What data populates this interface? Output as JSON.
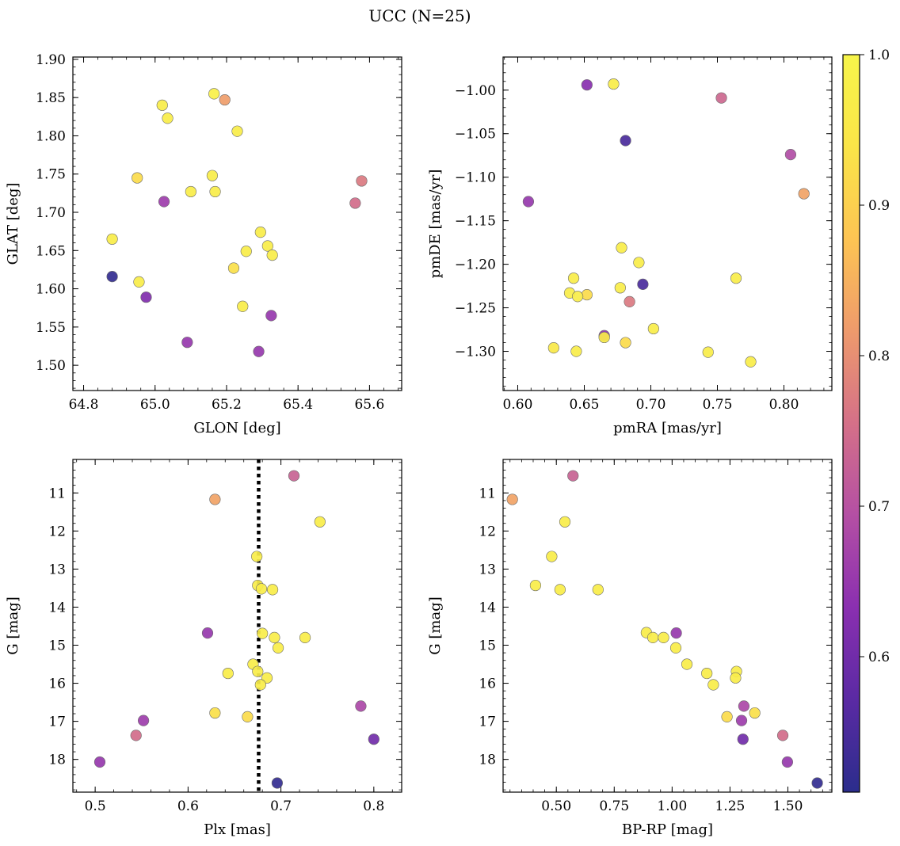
{
  "title": "UCC (N=25)",
  "colorbar": {
    "min": 0.51,
    "max": 1.0,
    "ticks": [
      0.6,
      0.7,
      0.8,
      0.9,
      1.0
    ],
    "tick_labels": [
      "0.6",
      "0.7",
      "0.8",
      "0.9",
      "1.0"
    ],
    "colormap": "plasma",
    "stops": [
      "#2b2d8c",
      "#5a2aa3",
      "#8a2fb0",
      "#b44fa4",
      "#d47088",
      "#ee9a6c",
      "#fdc453",
      "#fae548",
      "#f7f54a"
    ]
  },
  "chart_data": [
    {
      "type": "scatter",
      "xlabel": "GLON [deg]",
      "ylabel": "GLAT [deg]",
      "xlim": [
        64.77,
        65.69
      ],
      "ylim": [
        1.467,
        1.903
      ],
      "invert_y": false,
      "xticks": [
        64.8,
        65.0,
        65.2,
        65.4,
        65.6
      ],
      "xtick_labels": [
        "64.8",
        "65.0",
        "65.2",
        "65.4",
        "65.6"
      ],
      "yticks": [
        1.5,
        1.55,
        1.6,
        1.65,
        1.7,
        1.75,
        1.8,
        1.85,
        1.9
      ],
      "ytick_labels": [
        "1.50",
        "1.55",
        "1.60",
        "1.65",
        "1.70",
        "1.75",
        "1.80",
        "1.85",
        "1.90"
      ],
      "points": [
        {
          "x": 64.88,
          "y": 1.616,
          "c": 0.52
        },
        {
          "x": 64.88,
          "y": 1.665,
          "c": 0.97
        },
        {
          "x": 64.95,
          "y": 1.745,
          "c": 0.92
        },
        {
          "x": 64.955,
          "y": 1.609,
          "c": 0.97
        },
        {
          "x": 64.975,
          "y": 1.589,
          "c": 0.62
        },
        {
          "x": 65.02,
          "y": 1.84,
          "c": 0.97
        },
        {
          "x": 65.025,
          "y": 1.714,
          "c": 0.66
        },
        {
          "x": 65.035,
          "y": 1.823,
          "c": 0.97
        },
        {
          "x": 65.09,
          "y": 1.53,
          "c": 0.65
        },
        {
          "x": 65.1,
          "y": 1.727,
          "c": 0.97
        },
        {
          "x": 65.16,
          "y": 1.748,
          "c": 0.97
        },
        {
          "x": 65.165,
          "y": 1.855,
          "c": 0.98
        },
        {
          "x": 65.168,
          "y": 1.727,
          "c": 0.97
        },
        {
          "x": 65.195,
          "y": 1.847,
          "c": 0.82
        },
        {
          "x": 65.22,
          "y": 1.627,
          "c": 0.93
        },
        {
          "x": 65.23,
          "y": 1.806,
          "c": 0.97
        },
        {
          "x": 65.245,
          "y": 1.577,
          "c": 0.97
        },
        {
          "x": 65.255,
          "y": 1.649,
          "c": 0.97
        },
        {
          "x": 65.29,
          "y": 1.518,
          "c": 0.65
        },
        {
          "x": 65.295,
          "y": 1.674,
          "c": 0.97
        },
        {
          "x": 65.315,
          "y": 1.656,
          "c": 0.97
        },
        {
          "x": 65.325,
          "y": 1.565,
          "c": 0.65
        },
        {
          "x": 65.328,
          "y": 1.644,
          "c": 0.97
        },
        {
          "x": 65.56,
          "y": 1.712,
          "c": 0.75
        },
        {
          "x": 65.578,
          "y": 1.741,
          "c": 0.77
        }
      ]
    },
    {
      "type": "scatter",
      "xlabel": "pmRA [mas/yr]",
      "ylabel": "pmDE [mas/yr]",
      "xlim": [
        0.589,
        0.836
      ],
      "ylim": [
        -1.345,
        -0.962
      ],
      "invert_y": false,
      "xticks": [
        0.6,
        0.65,
        0.7,
        0.75,
        0.8
      ],
      "xtick_labels": [
        "0.60",
        "0.65",
        "0.70",
        "0.75",
        "0.80"
      ],
      "yticks": [
        -1.3,
        -1.25,
        -1.2,
        -1.15,
        -1.1,
        -1.05,
        -1.0
      ],
      "ytick_labels": [
        "−1.30",
        "−1.25",
        "−1.20",
        "−1.15",
        "−1.10",
        "−1.05",
        "−1.00"
      ],
      "points": [
        {
          "x": 0.608,
          "y": -1.128,
          "c": 0.65
        },
        {
          "x": 0.627,
          "y": -1.296,
          "c": 0.95
        },
        {
          "x": 0.639,
          "y": -1.233,
          "c": 0.97
        },
        {
          "x": 0.642,
          "y": -1.216,
          "c": 0.97
        },
        {
          "x": 0.644,
          "y": -1.3,
          "c": 0.97
        },
        {
          "x": 0.645,
          "y": -1.237,
          "c": 0.97
        },
        {
          "x": 0.652,
          "y": -0.994,
          "c": 0.63
        },
        {
          "x": 0.652,
          "y": -1.235,
          "c": 0.92
        },
        {
          "x": 0.665,
          "y": -1.282,
          "c": 0.64
        },
        {
          "x": 0.665,
          "y": -1.284,
          "c": 0.97
        },
        {
          "x": 0.672,
          "y": -0.993,
          "c": 0.97
        },
        {
          "x": 0.677,
          "y": -1.227,
          "c": 0.97
        },
        {
          "x": 0.678,
          "y": -1.181,
          "c": 0.97
        },
        {
          "x": 0.681,
          "y": -1.058,
          "c": 0.55
        },
        {
          "x": 0.681,
          "y": -1.29,
          "c": 0.92
        },
        {
          "x": 0.684,
          "y": -1.243,
          "c": 0.77
        },
        {
          "x": 0.691,
          "y": -1.198,
          "c": 0.97
        },
        {
          "x": 0.694,
          "y": -1.223,
          "c": 0.55
        },
        {
          "x": 0.702,
          "y": -1.274,
          "c": 0.97
        },
        {
          "x": 0.743,
          "y": -1.301,
          "c": 0.97
        },
        {
          "x": 0.753,
          "y": -1.009,
          "c": 0.74
        },
        {
          "x": 0.764,
          "y": -1.216,
          "c": 0.97
        },
        {
          "x": 0.775,
          "y": -1.312,
          "c": 0.97
        },
        {
          "x": 0.805,
          "y": -1.074,
          "c": 0.69
        },
        {
          "x": 0.815,
          "y": -1.119,
          "c": 0.83
        }
      ]
    },
    {
      "type": "scatter",
      "xlabel": "Plx [mas]",
      "ylabel": "G [mag]",
      "xlim": [
        0.476,
        0.83
      ],
      "ylim": [
        18.86,
        10.12
      ],
      "invert_y": true,
      "xticks": [
        0.5,
        0.6,
        0.7,
        0.8
      ],
      "xtick_labels": [
        "0.5",
        "0.6",
        "0.7",
        "0.8"
      ],
      "yticks": [
        11,
        12,
        13,
        14,
        15,
        16,
        17,
        18
      ],
      "ytick_labels": [
        "11",
        "12",
        "13",
        "14",
        "15",
        "16",
        "17",
        "18"
      ],
      "vline": {
        "x": 0.676,
        "style": "dotted"
      },
      "points": [
        {
          "x": 0.714,
          "y": 10.55,
          "c": 0.73
        },
        {
          "x": 0.629,
          "y": 11.17,
          "c": 0.83
        },
        {
          "x": 0.742,
          "y": 11.76,
          "c": 0.97
        },
        {
          "x": 0.674,
          "y": 12.67,
          "c": 0.97
        },
        {
          "x": 0.675,
          "y": 13.43,
          "c": 0.97
        },
        {
          "x": 0.679,
          "y": 13.52,
          "c": 0.97
        },
        {
          "x": 0.691,
          "y": 13.54,
          "c": 0.97
        },
        {
          "x": 0.621,
          "y": 14.68,
          "c": 0.65
        },
        {
          "x": 0.68,
          "y": 14.69,
          "c": 0.97
        },
        {
          "x": 0.693,
          "y": 14.8,
          "c": 0.97
        },
        {
          "x": 0.726,
          "y": 14.8,
          "c": 0.97
        },
        {
          "x": 0.697,
          "y": 15.07,
          "c": 0.97
        },
        {
          "x": 0.67,
          "y": 15.5,
          "c": 0.97
        },
        {
          "x": 0.675,
          "y": 15.69,
          "c": 0.97
        },
        {
          "x": 0.643,
          "y": 15.74,
          "c": 0.97
        },
        {
          "x": 0.685,
          "y": 15.86,
          "c": 0.97
        },
        {
          "x": 0.678,
          "y": 16.04,
          "c": 0.97
        },
        {
          "x": 0.786,
          "y": 16.6,
          "c": 0.68
        },
        {
          "x": 0.629,
          "y": 16.78,
          "c": 0.93
        },
        {
          "x": 0.664,
          "y": 16.88,
          "c": 0.92
        },
        {
          "x": 0.552,
          "y": 16.98,
          "c": 0.66
        },
        {
          "x": 0.544,
          "y": 17.37,
          "c": 0.75
        },
        {
          "x": 0.8,
          "y": 17.47,
          "c": 0.6
        },
        {
          "x": 0.505,
          "y": 18.07,
          "c": 0.65
        },
        {
          "x": 0.696,
          "y": 18.62,
          "c": 0.52
        }
      ]
    },
    {
      "type": "scatter",
      "xlabel": "BP-RP [mag]",
      "ylabel": "G [mag]",
      "xlim": [
        0.27,
        1.69
      ],
      "ylim": [
        18.86,
        10.12
      ],
      "invert_y": true,
      "xticks": [
        0.5,
        0.75,
        1.0,
        1.25,
        1.5
      ],
      "xtick_labels": [
        "0.50",
        "0.75",
        "1.00",
        "1.25",
        "1.50"
      ],
      "yticks": [
        11,
        12,
        13,
        14,
        15,
        16,
        17,
        18
      ],
      "ytick_labels": [
        "11",
        "12",
        "13",
        "14",
        "15",
        "16",
        "17",
        "18"
      ],
      "points": [
        {
          "x": 0.572,
          "y": 10.55,
          "c": 0.73
        },
        {
          "x": 0.31,
          "y": 11.17,
          "c": 0.83
        },
        {
          "x": 0.537,
          "y": 11.76,
          "c": 0.97
        },
        {
          "x": 0.48,
          "y": 12.67,
          "c": 0.97
        },
        {
          "x": 0.41,
          "y": 13.43,
          "c": 0.97
        },
        {
          "x": 0.516,
          "y": 13.54,
          "c": 0.97
        },
        {
          "x": 0.68,
          "y": 13.54,
          "c": 0.97
        },
        {
          "x": 0.889,
          "y": 14.67,
          "c": 0.97
        },
        {
          "x": 0.917,
          "y": 14.8,
          "c": 0.97
        },
        {
          "x": 0.963,
          "y": 14.8,
          "c": 0.97
        },
        {
          "x": 1.018,
          "y": 14.68,
          "c": 0.65
        },
        {
          "x": 1.016,
          "y": 15.07,
          "c": 0.97
        },
        {
          "x": 1.064,
          "y": 15.5,
          "c": 0.97
        },
        {
          "x": 1.15,
          "y": 15.74,
          "c": 0.97
        },
        {
          "x": 1.178,
          "y": 16.04,
          "c": 0.97
        },
        {
          "x": 1.278,
          "y": 15.69,
          "c": 0.97
        },
        {
          "x": 1.274,
          "y": 15.86,
          "c": 0.97
        },
        {
          "x": 1.31,
          "y": 16.6,
          "c": 0.68
        },
        {
          "x": 1.357,
          "y": 16.78,
          "c": 0.93
        },
        {
          "x": 1.237,
          "y": 16.88,
          "c": 0.92
        },
        {
          "x": 1.3,
          "y": 16.98,
          "c": 0.66
        },
        {
          "x": 1.306,
          "y": 17.47,
          "c": 0.6
        },
        {
          "x": 1.478,
          "y": 17.37,
          "c": 0.75
        },
        {
          "x": 1.498,
          "y": 18.07,
          "c": 0.65
        },
        {
          "x": 1.627,
          "y": 18.62,
          "c": 0.52
        }
      ]
    }
  ]
}
